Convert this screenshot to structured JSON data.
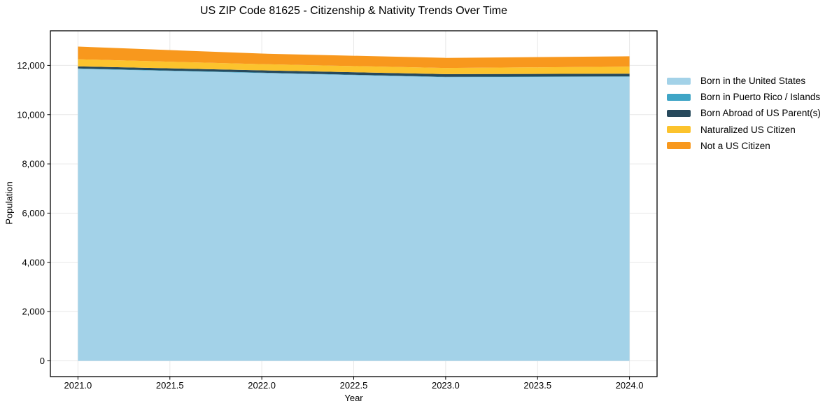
{
  "chart_data": {
    "type": "area",
    "stacked": true,
    "title": "US ZIP Code 81625 - Citizenship & Nativity Trends Over Time",
    "xlabel": "Year",
    "ylabel": "Population",
    "x": [
      2021,
      2022,
      2023,
      2024
    ],
    "series": [
      {
        "name": "Born in the United States",
        "color": "#a3d2e8",
        "values": [
          11860,
          11690,
          11520,
          11540
        ]
      },
      {
        "name": "Born in Puerto Rico / Islands",
        "color": "#3fa5c6",
        "values": [
          15,
          15,
          15,
          15
        ]
      },
      {
        "name": "Born Abroad of US Parent(s)",
        "color": "#27495c",
        "values": [
          85,
          95,
          110,
          110
        ]
      },
      {
        "name": "Naturalized US Citizen",
        "color": "#fcc32d",
        "values": [
          290,
          250,
          250,
          285
        ]
      },
      {
        "name": "Not a US Citizen",
        "color": "#f8981d",
        "values": [
          515,
          430,
          410,
          420
        ]
      }
    ],
    "xlim": [
      2020.85,
      2024.15
    ],
    "ylim": [
      -640,
      13405
    ],
    "xticks": [
      2021.0,
      2021.5,
      2022.0,
      2022.5,
      2023.0,
      2023.5,
      2024.0
    ],
    "yticks": [
      0,
      2000,
      4000,
      6000,
      8000,
      10000,
      12000
    ],
    "grid": true,
    "grid_color": "#e7e7e7",
    "axis_color": "#000000",
    "legend_position": "right-outside"
  }
}
